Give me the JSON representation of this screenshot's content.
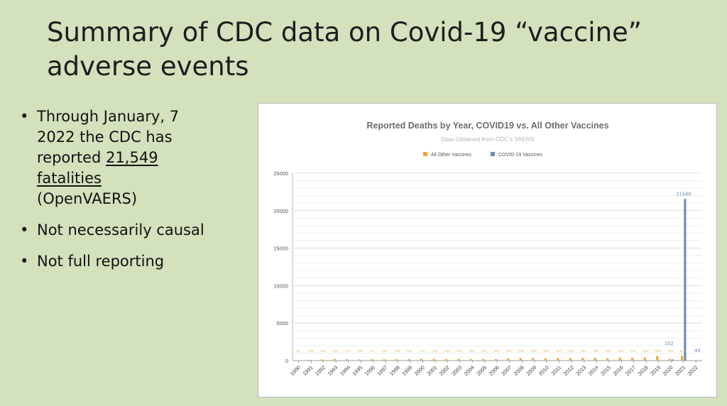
{
  "slide": {
    "title_line1": "Summary of CDC data on Covid-19 “vaccine”",
    "title_line2": "adverse events",
    "bullets": {
      "b1_line1": "Through January, 7",
      "b1_line2": "2022 the CDC has",
      "b1_line3_pre": "reported ",
      "b1_line3_u": "21,549",
      "b1_line4_u": "fatalities",
      "b1_line5": "(OpenVAERS)",
      "b2": "Not necessarily causal",
      "b3": "Not full reporting"
    }
  },
  "colors": {
    "background": "#d3e1bd",
    "other_vaccines": "#f0a73a",
    "covid_vaccines": "#6b8fb5"
  },
  "chart_data": {
    "type": "bar",
    "title": "Reported Deaths by Year, COVID19 vs. All Other Vaccines",
    "subtitle": "Data Obtained from CDC's VAERS",
    "legend_position": "top",
    "grid": true,
    "ylim": [
      0,
      25000
    ],
    "yticks": [
      0,
      5000,
      10000,
      15000,
      20000,
      25000
    ],
    "categories": [
      "1990",
      "1991",
      "1992",
      "1993",
      "1994",
      "1995",
      "1996",
      "1997",
      "1998",
      "1999",
      "2000",
      "2001",
      "2002",
      "2003",
      "2004",
      "2005",
      "2006",
      "2007",
      "2008",
      "2009",
      "2010",
      "2011",
      "2012",
      "2013",
      "2014",
      "2015",
      "2016",
      "2017",
      "2018",
      "2019",
      "2020",
      "2021",
      "2022"
    ],
    "series": [
      {
        "name": "All Other Vaccines",
        "values": [
          69,
          105,
          146,
          202,
          174,
          156,
          177,
          167,
          186,
          191,
          241,
          216,
          184,
          225,
          201,
          203,
          203,
          284,
          336,
          334,
          304,
          327,
          356,
          364,
          395,
          322,
          403,
          376,
          424,
          605,
          208,
          641,
          null
        ],
        "labels": [
          "69",
          "105",
          "146",
          "202",
          "174",
          "156",
          "177",
          "167",
          "186",
          "191",
          "241",
          "216",
          "184",
          "225",
          "201",
          "203",
          "203",
          "284",
          "336",
          "334",
          "304",
          "327",
          "356",
          "364",
          "395",
          "322",
          "403",
          "376",
          "424",
          "605",
          "208",
          "641",
          ""
        ]
      },
      {
        "name": "COVID-19 Vaccines",
        "values": [
          null,
          null,
          null,
          null,
          null,
          null,
          null,
          null,
          null,
          null,
          null,
          null,
          null,
          null,
          null,
          null,
          null,
          null,
          null,
          null,
          null,
          null,
          null,
          null,
          null,
          null,
          null,
          null,
          null,
          null,
          152,
          21549,
          44
        ],
        "labels": [
          "",
          "",
          "",
          "",
          "",
          "",
          "",
          "",
          "",
          "",
          "",
          "",
          "",
          "",
          "",
          "",
          "",
          "",
          "",
          "",
          "",
          "",
          "",
          "",
          "",
          "",
          "",
          "",
          "",
          "",
          "152",
          "21549",
          "44"
        ]
      }
    ]
  }
}
